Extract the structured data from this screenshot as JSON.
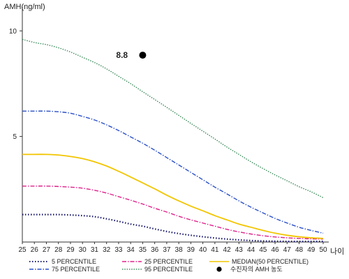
{
  "chart_data": {
    "type": "line",
    "ylabel": "AMH(ng/ml)",
    "xlabel": "나이",
    "x": [
      25,
      26,
      27,
      28,
      29,
      30,
      31,
      32,
      33,
      34,
      35,
      36,
      37,
      38,
      39,
      40,
      41,
      42,
      43,
      44,
      45,
      46,
      47,
      48,
      49,
      50
    ],
    "xlim": [
      25,
      50
    ],
    "ylim": [
      0,
      11
    ],
    "yticks": [
      5,
      10
    ],
    "grid": false,
    "legend_position": "bottom",
    "series": [
      {
        "name": "5 PERCENTILE",
        "color": "#1a1a6e",
        "dash": "1.5,2.5",
        "width": 2.2,
        "values": [
          1.3,
          1.3,
          1.3,
          1.3,
          1.28,
          1.25,
          1.2,
          1.1,
          0.98,
          0.85,
          0.75,
          0.62,
          0.5,
          0.4,
          0.32,
          0.25,
          0.19,
          0.14,
          0.1,
          0.07,
          0.05,
          0.04,
          0.03,
          0.03,
          0.03,
          0.03
        ]
      },
      {
        "name": "25 PERCENTILE",
        "color": "#e0208a",
        "dash": "6,2,1.5,2",
        "width": 1.4,
        "values": [
          2.65,
          2.65,
          2.65,
          2.63,
          2.6,
          2.55,
          2.45,
          2.32,
          2.15,
          1.98,
          1.8,
          1.6,
          1.42,
          1.22,
          1.05,
          0.9,
          0.75,
          0.6,
          0.48,
          0.38,
          0.3,
          0.24,
          0.2,
          0.17,
          0.15,
          0.14
        ]
      },
      {
        "name": "MEDIAN(50 PERCENTILE)",
        "color": "#f2c500",
        "dash": "",
        "width": 1.8,
        "values": [
          4.15,
          4.15,
          4.15,
          4.12,
          4.05,
          3.95,
          3.8,
          3.6,
          3.35,
          3.08,
          2.8,
          2.52,
          2.22,
          1.95,
          1.7,
          1.48,
          1.25,
          1.05,
          0.85,
          0.7,
          0.55,
          0.42,
          0.32,
          0.25,
          0.2,
          0.17
        ]
      },
      {
        "name": "75 PERCENTILE",
        "color": "#2a4fc9",
        "dash": "6,2,1.5,2",
        "width": 1.4,
        "values": [
          6.2,
          6.2,
          6.2,
          6.17,
          6.1,
          5.95,
          5.78,
          5.55,
          5.28,
          4.98,
          4.68,
          4.35,
          4.0,
          3.65,
          3.3,
          2.95,
          2.6,
          2.28,
          1.95,
          1.65,
          1.38,
          1.12,
          0.9,
          0.7,
          0.55,
          0.42
        ]
      },
      {
        "name": "95 PERCENTILE",
        "color": "#3b8a5a",
        "dash": "1.5,1.8",
        "width": 1.4,
        "values": [
          9.6,
          9.45,
          9.35,
          9.2,
          9.0,
          8.75,
          8.5,
          8.2,
          7.85,
          7.5,
          7.12,
          6.75,
          6.38,
          6.0,
          5.62,
          5.25,
          4.88,
          4.5,
          4.15,
          3.8,
          3.48,
          3.18,
          2.9,
          2.62,
          2.38,
          2.1
        ]
      }
    ],
    "annotation": {
      "label": "수진자의 AMH 농도",
      "x": 35,
      "y": 8.85,
      "value_text": "8.8",
      "color": "#000000"
    }
  }
}
